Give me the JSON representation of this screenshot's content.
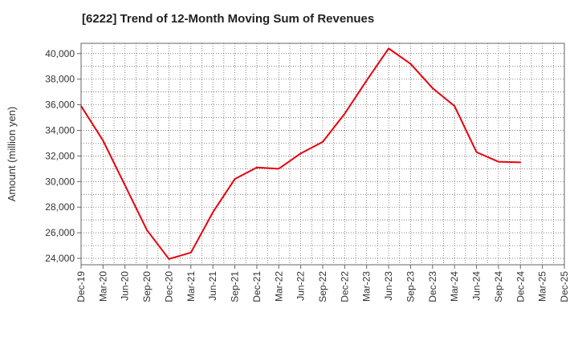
{
  "chart_data": {
    "type": "line",
    "title": "[6222]  Trend of 12-Month Moving Sum of Revenues",
    "xlabel": "",
    "ylabel": "Amount (million yen)",
    "ylim": [
      23500,
      40800
    ],
    "yticks": [
      24000,
      26000,
      28000,
      30000,
      32000,
      34000,
      36000,
      38000,
      40000
    ],
    "ytick_labels": [
      "24,000",
      "26,000",
      "28,000",
      "30,000",
      "32,000",
      "34,000",
      "36,000",
      "38,000",
      "40,000"
    ],
    "xtick_labels": [
      "Dec-19",
      "Mar-20",
      "Jun-20",
      "Sep-20",
      "Dec-20",
      "Mar-21",
      "Jun-21",
      "Sep-21",
      "Dec-21",
      "Mar-22",
      "Jun-22",
      "Sep-22",
      "Dec-22",
      "Mar-23",
      "Jun-23",
      "Sep-23",
      "Dec-23",
      "Mar-24",
      "Jun-24",
      "Sep-24",
      "Dec-24",
      "Mar-25",
      "Dec-25"
    ],
    "grid": true,
    "series": [
      {
        "color": "#e8000b",
        "x": [
          "Dec-19",
          "Mar-20",
          "Jun-20",
          "Sep-20",
          "Dec-20",
          "Mar-21",
          "Jun-21",
          "Sep-21",
          "Dec-21",
          "Mar-22",
          "Jun-22",
          "Sep-22",
          "Dec-22",
          "Mar-23",
          "Jun-23",
          "Sep-23",
          "Dec-23",
          "Mar-24",
          "Jun-24",
          "Sep-24",
          "Dec-24"
        ],
        "values": [
          35900,
          33200,
          29700,
          26200,
          23950,
          24450,
          27600,
          30200,
          31100,
          31000,
          32200,
          33100,
          35300,
          37900,
          40400,
          39200,
          37300,
          35900,
          32300,
          31550,
          31500
        ]
      }
    ]
  }
}
